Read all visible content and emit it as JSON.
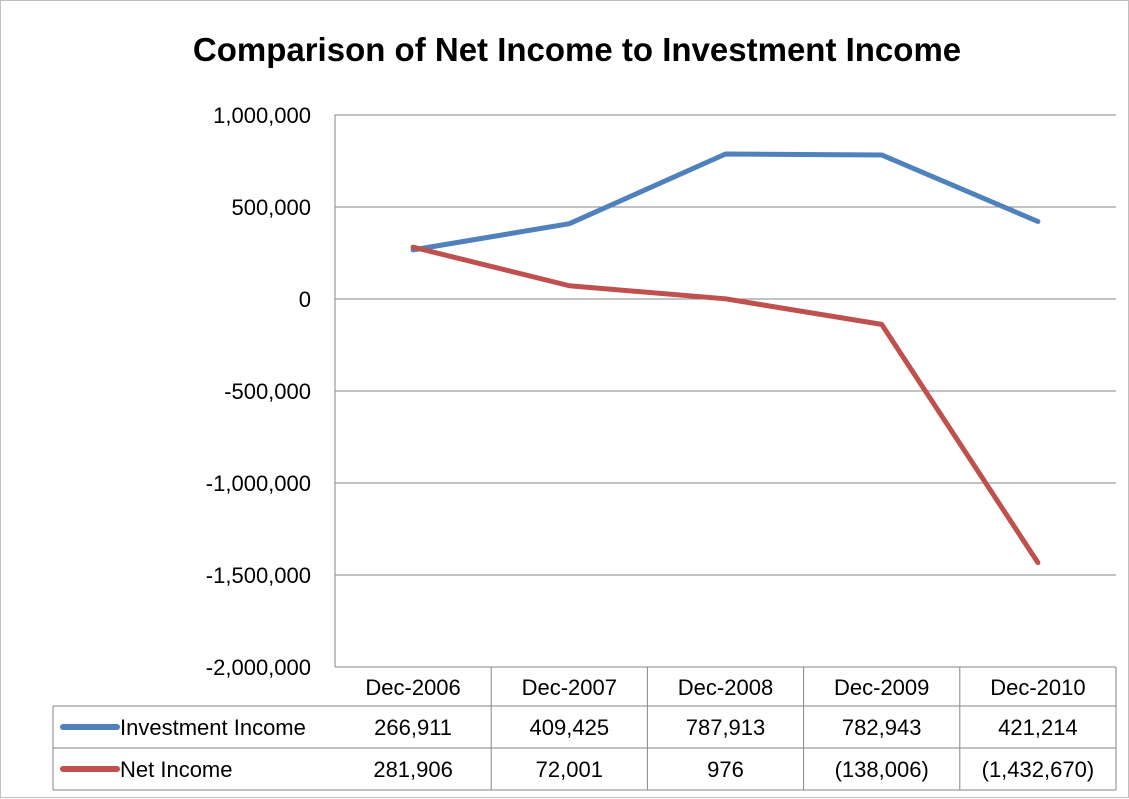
{
  "chart_data": {
    "type": "line",
    "title": "Comparison of Net Income to Investment Income",
    "categories": [
      "Dec-2006",
      "Dec-2007",
      "Dec-2008",
      "Dec-2009",
      "Dec-2010"
    ],
    "series": [
      {
        "name": "Investment Income",
        "values": [
          266911,
          409425,
          787913,
          782943,
          421214
        ],
        "labels": [
          "266,911",
          "409,425",
          "787,913",
          "782,943",
          "421,214"
        ],
        "color": "#4f81bd"
      },
      {
        "name": "Net Income",
        "values": [
          281906,
          72001,
          976,
          -138006,
          -1432670
        ],
        "labels": [
          "281,906",
          "72,001",
          "976",
          "(138,006)",
          "(1,432,670)"
        ],
        "color": "#c0504d"
      }
    ],
    "ylim": [
      -2000000,
      1000000
    ],
    "yticks": [
      1000000,
      500000,
      0,
      -500000,
      -1000000,
      -1500000,
      -2000000
    ],
    "ytick_labels": [
      "1,000,000",
      "500,000",
      "0",
      "-500,000",
      "-1,000,000",
      "-1,500,000",
      "-2,000,000"
    ],
    "grid": true,
    "legend": "data-table-bottom"
  }
}
